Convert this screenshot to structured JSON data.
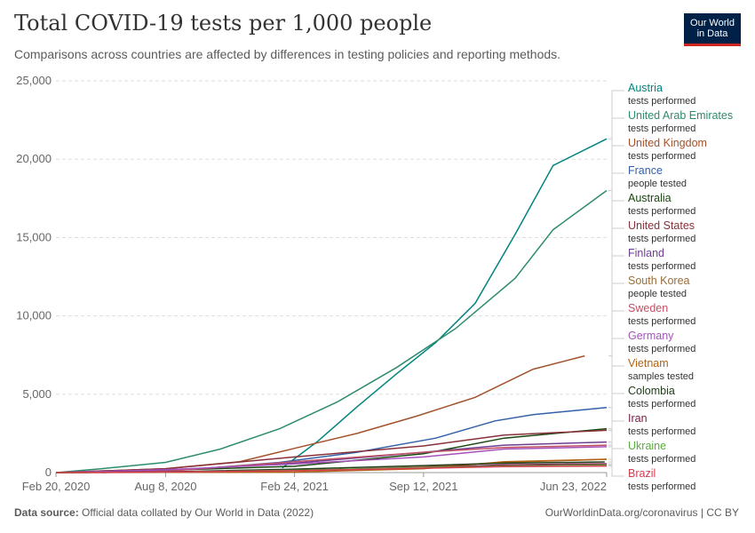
{
  "header": {
    "title": "Total COVID-19 tests per 1,000 people",
    "subtitle": "Comparisons across countries are affected by differences in testing policies and reporting methods.",
    "logo_line1": "Our World",
    "logo_line2": "in Data"
  },
  "footer": {
    "source_label": "Data source:",
    "source_text": "Official data collated by Our World in Data (2022)",
    "url": "OurWorldinData.org/coronavirus | CC BY"
  },
  "chart_data": {
    "type": "line",
    "title": "Total COVID-19 tests per 1,000 people",
    "subtitle": "Comparisons across countries are affected by differences in testing policies and reporting methods.",
    "x_ticks": [
      "Feb 20, 2020",
      "Aug 8, 2020",
      "Feb 24, 2021",
      "Sep 12, 2021",
      "Jun 23, 2022"
    ],
    "x_range": [
      "2020-02-20",
      "2022-06-23"
    ],
    "y_ticks": [
      0,
      5000,
      10000,
      15000,
      20000,
      25000
    ],
    "y_tick_labels": [
      "0",
      "5,000",
      "10,000",
      "15,000",
      "20,000",
      "25,000"
    ],
    "ylim": [
      0,
      25000
    ],
    "grid": "horizontal dashed",
    "legend": "right",
    "series": [
      {
        "name": "Austria",
        "unit": "tests performed",
        "color": "#00847e",
        "points": [
          [
            "2021-02-05",
            300
          ],
          [
            "2021-04-01",
            2000
          ],
          [
            "2021-06-01",
            4200
          ],
          [
            "2021-08-01",
            6300
          ],
          [
            "2021-10-01",
            8300
          ],
          [
            "2021-12-01",
            10800
          ],
          [
            "2022-02-01",
            15200
          ],
          [
            "2022-04-01",
            19600
          ],
          [
            "2022-06-23",
            21300
          ]
        ]
      },
      {
        "name": "United Arab Emirates",
        "unit": "tests performed",
        "color": "#2e8b6e",
        "points": [
          [
            "2020-02-20",
            0
          ],
          [
            "2020-05-01",
            250
          ],
          [
            "2020-08-08",
            650
          ],
          [
            "2020-11-01",
            1500
          ],
          [
            "2021-02-01",
            2800
          ],
          [
            "2021-05-01",
            4500
          ],
          [
            "2021-08-01",
            6700
          ],
          [
            "2021-11-01",
            9200
          ],
          [
            "2022-02-01",
            12400
          ],
          [
            "2022-04-01",
            15500
          ],
          [
            "2022-06-23",
            18000
          ]
        ]
      },
      {
        "name": "United Kingdom",
        "unit": "tests performed",
        "color": "#a2522b",
        "points": [
          [
            "2020-02-20",
            0
          ],
          [
            "2020-08-08",
            250
          ],
          [
            "2020-12-01",
            700
          ],
          [
            "2021-03-01",
            1600
          ],
          [
            "2021-06-01",
            2500
          ],
          [
            "2021-09-01",
            3600
          ],
          [
            "2021-12-01",
            4800
          ],
          [
            "2022-03-01",
            6600
          ],
          [
            "2022-05-20",
            7450
          ]
        ]
      },
      {
        "name": "France",
        "unit": "people tested",
        "color": "#3360a9",
        "points": [
          [
            "2020-05-01",
            0
          ],
          [
            "2020-10-01",
            250
          ],
          [
            "2021-02-01",
            650
          ],
          [
            "2021-06-01",
            1300
          ],
          [
            "2021-10-01",
            2200
          ],
          [
            "2022-01-01",
            3300
          ],
          [
            "2022-03-01",
            3700
          ],
          [
            "2022-06-23",
            4150
          ]
        ]
      },
      {
        "name": "Australia",
        "unit": "tests performed",
        "color": "#18470f",
        "points": [
          [
            "2020-02-20",
            0
          ],
          [
            "2020-08-08",
            150
          ],
          [
            "2021-02-24",
            400
          ],
          [
            "2021-09-12",
            1200
          ],
          [
            "2022-01-15",
            2200
          ],
          [
            "2022-06-23",
            2800
          ]
        ]
      },
      {
        "name": "United States",
        "unit": "tests performed",
        "color": "#883039",
        "points": [
          [
            "2020-02-20",
            0
          ],
          [
            "2020-08-08",
            250
          ],
          [
            "2021-02-24",
            1000
          ],
          [
            "2021-09-12",
            1700
          ],
          [
            "2022-01-15",
            2400
          ],
          [
            "2022-06-23",
            2700
          ]
        ]
      },
      {
        "name": "Finland",
        "unit": "tests performed",
        "color": "#6d3e91",
        "points": [
          [
            "2020-02-20",
            0
          ],
          [
            "2020-08-08",
            150
          ],
          [
            "2021-02-24",
            600
          ],
          [
            "2021-09-12",
            1300
          ],
          [
            "2022-01-15",
            1750
          ],
          [
            "2022-06-23",
            1950
          ]
        ]
      },
      {
        "name": "South Korea",
        "unit": "people tested",
        "color": "#996d39",
        "points": [
          [
            "2020-02-20",
            0
          ],
          [
            "2020-08-08",
            30
          ],
          [
            "2021-02-24",
            120
          ],
          [
            "2021-09-12",
            350
          ],
          [
            "2022-01-15",
            650
          ],
          [
            "2022-06-23",
            850
          ]
        ]
      },
      {
        "name": "Sweden",
        "unit": "tests performed",
        "color": "#c15065",
        "points": [
          [
            "2020-02-20",
            0
          ],
          [
            "2020-08-08",
            80
          ],
          [
            "2021-02-24",
            700
          ],
          [
            "2021-09-12",
            1300
          ],
          [
            "2022-01-15",
            1600
          ],
          [
            "2022-06-23",
            1750
          ]
        ]
      },
      {
        "name": "Germany",
        "unit": "tests performed",
        "color": "#a652ba",
        "points": [
          [
            "2020-02-20",
            0
          ],
          [
            "2020-08-08",
            180
          ],
          [
            "2021-02-24",
            550
          ],
          [
            "2021-09-12",
            1000
          ],
          [
            "2022-01-15",
            1500
          ],
          [
            "2022-06-23",
            1650
          ]
        ]
      },
      {
        "name": "Vietnam",
        "unit": "samples tested",
        "color": "#b16214",
        "points": [
          [
            "2020-02-20",
            0
          ],
          [
            "2020-08-08",
            10
          ],
          [
            "2021-02-24",
            30
          ],
          [
            "2021-09-12",
            250
          ],
          [
            "2022-01-15",
            700
          ],
          [
            "2022-06-23",
            850
          ]
        ]
      },
      {
        "name": "Colombia",
        "unit": "tests performed",
        "color": "#1f3b17",
        "points": [
          [
            "2020-02-20",
            0
          ],
          [
            "2020-08-08",
            40
          ],
          [
            "2021-02-24",
            220
          ],
          [
            "2021-09-12",
            450
          ],
          [
            "2022-01-15",
            600
          ],
          [
            "2022-06-20",
            680
          ]
        ]
      },
      {
        "name": "Iran",
        "unit": "tests performed",
        "color": "#7c1d47",
        "points": [
          [
            "2020-02-20",
            0
          ],
          [
            "2020-08-08",
            40
          ],
          [
            "2021-02-24",
            150
          ],
          [
            "2021-09-12",
            300
          ],
          [
            "2022-01-15",
            500
          ],
          [
            "2022-06-23",
            560
          ]
        ]
      },
      {
        "name": "Ukraine",
        "unit": "tests performed",
        "color": "#58ac3b",
        "points": [
          [
            "2020-02-20",
            0
          ],
          [
            "2020-08-08",
            20
          ],
          [
            "2021-02-24",
            150
          ],
          [
            "2021-09-12",
            300
          ],
          [
            "2022-01-15",
            420
          ],
          [
            "2022-06-23",
            480
          ]
        ]
      },
      {
        "name": "Brazil",
        "unit": "tests performed",
        "color": "#d73c50",
        "points": [
          [
            "2020-02-20",
            0
          ],
          [
            "2020-08-08",
            30
          ],
          [
            "2021-02-24",
            120
          ],
          [
            "2021-09-12",
            280
          ],
          [
            "2022-01-15",
            380
          ],
          [
            "2022-06-23",
            420
          ]
        ]
      }
    ]
  }
}
